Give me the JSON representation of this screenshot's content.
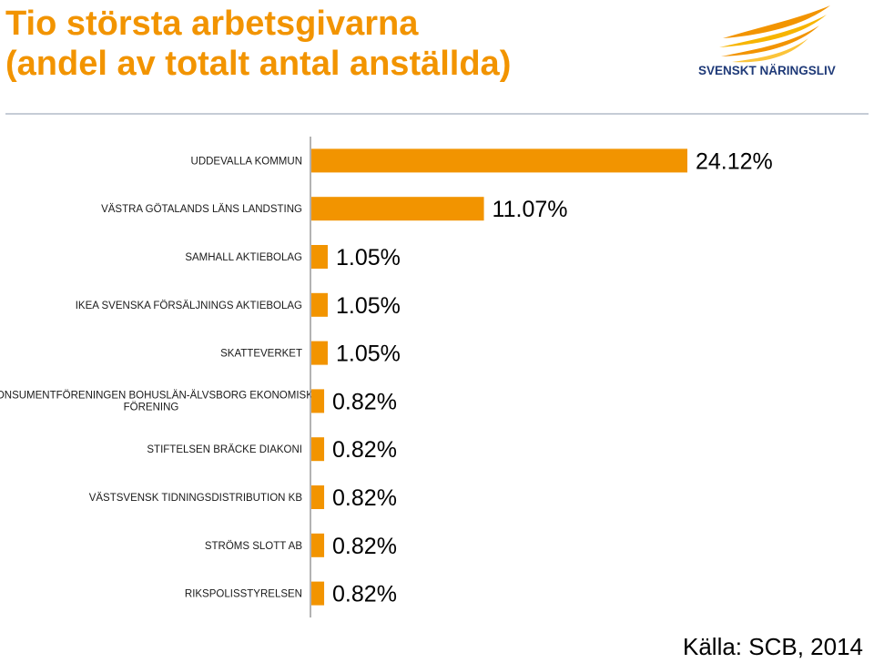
{
  "title": {
    "line1": "Tio största arbetsgivarna",
    "line2": "(andel av totalt antal anställda)"
  },
  "logo": {
    "text": "SVENSKT NÄRINGSLIV",
    "icon": "wing-flame-logo-icon"
  },
  "source": "Källa: SCB, 2014",
  "colors": {
    "title": "#f29400",
    "bar": "#f29400",
    "logo_text": "#1f3a78",
    "divider": "#c5ccd6"
  },
  "chart_data": {
    "type": "bar",
    "orientation": "horizontal",
    "title": "",
    "xlabel": "",
    "ylabel": "",
    "grid": false,
    "categories": [
      "UDDEVALLA KOMMUN",
      "VÄSTRA GÖTALANDS LÄNS LANDSTING",
      "SAMHALL AKTIEBOLAG",
      "IKEA SVENSKA FÖRSÄLJNINGS AKTIEBOLAG",
      "SKATTEVERKET",
      "KONSUMENTFÖRENINGEN BOHUSLÄN-ÄLVSBORG EKONOMISK FÖRENING",
      "STIFTELSEN BRÄCKE DIAKONI",
      "VÄSTSVENSK TIDNINGSDISTRIBUTION KB",
      "STRÖMS SLOTT AB",
      "RIKSPOLISSTYRELSEN"
    ],
    "values": [
      24.12,
      11.07,
      1.05,
      1.05,
      1.05,
      0.82,
      0.82,
      0.82,
      0.82,
      0.82
    ],
    "value_labels": [
      "24.12%",
      "11.07%",
      "1.05%",
      "1.05%",
      "1.05%",
      "0.82%",
      "0.82%",
      "0.82%",
      "0.82%",
      "0.82%"
    ],
    "xlim": [
      0,
      24.12
    ]
  }
}
